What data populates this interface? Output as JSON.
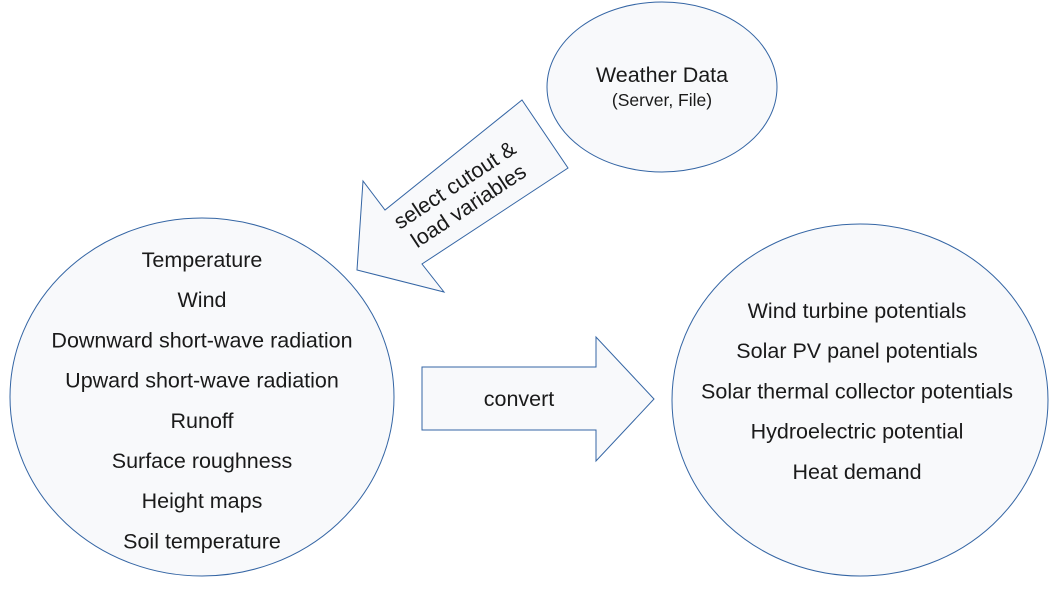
{
  "weather_data": {
    "title": "Weather Data",
    "subtitle": "(Server, File)"
  },
  "load_arrow": {
    "line1": "select cutout &",
    "line2": "load variables"
  },
  "variables": {
    "items": [
      "Temperature",
      "Wind",
      "Downward short-wave radiation",
      "Upward short-wave radiation",
      "Runoff",
      "Surface roughness",
      "Height maps",
      "Soil temperature"
    ]
  },
  "convert_arrow": {
    "label": "convert"
  },
  "potentials": {
    "items": [
      "Wind turbine potentials",
      "Solar PV panel potentials",
      "Solar thermal collector potentials",
      "Hydroelectric potential",
      "Heat demand"
    ]
  },
  "colors": {
    "outline": "#3465a4",
    "fill": "#f8f9fb",
    "text": "#1a1a1a"
  }
}
